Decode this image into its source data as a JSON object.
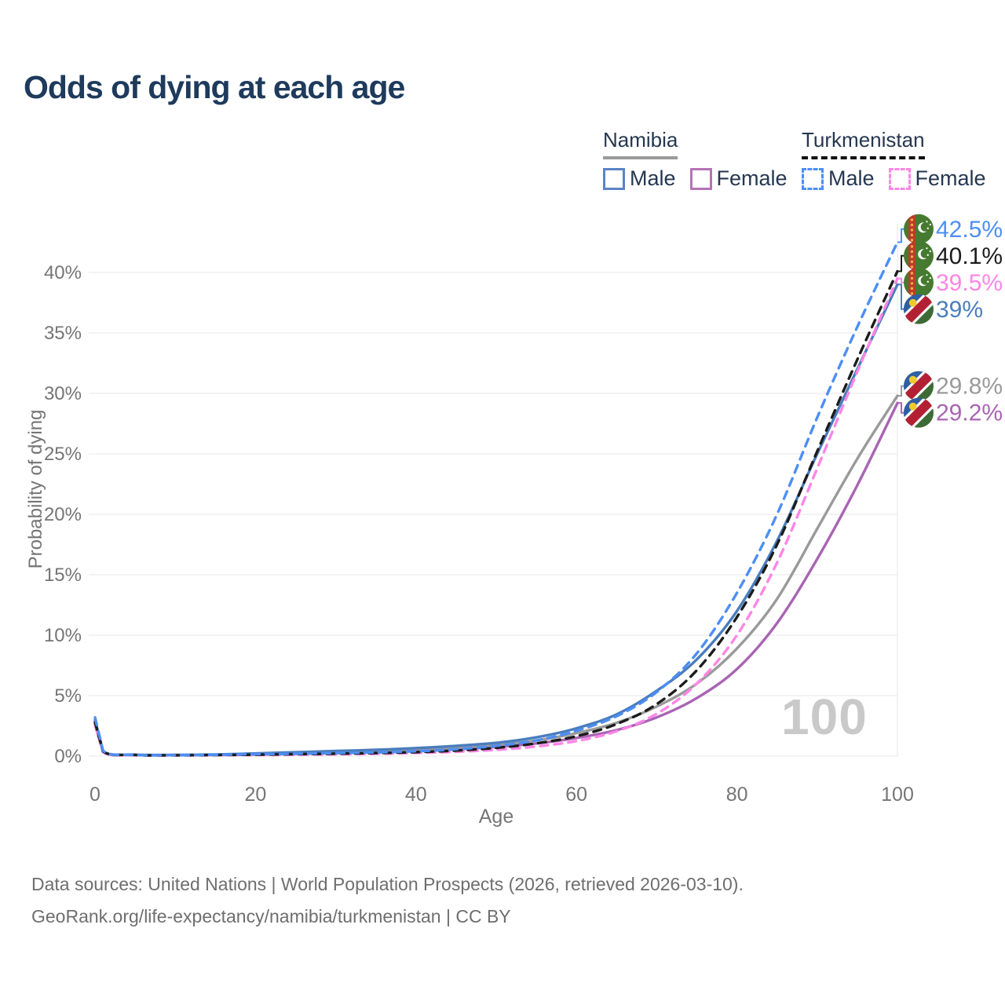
{
  "footer": {
    "line1": "Data sources: United Nations | World Population Prospects (2026, retrieved 2026-03-10).",
    "line2": "GeoRank.org/life-expectancy/namibia/turkmenistan | CC BY"
  },
  "legend": {
    "groups": [
      {
        "label": "Namibia",
        "line_style": "solid",
        "underline_color": "#9a9a9a",
        "items": [
          {
            "label": "Male",
            "color": "#5b84c4"
          },
          {
            "label": "Female",
            "color": "#b673b6"
          }
        ]
      },
      {
        "label": "Turkmenistan",
        "line_style": "dashed",
        "underline_color": "#111111",
        "items": [
          {
            "label": "Male",
            "color": "#4d8ef5"
          },
          {
            "label": "Female",
            "color": "#ff85e6"
          }
        ]
      }
    ]
  },
  "colors": {
    "title": "#1e3a5c",
    "axis_text": "#757575",
    "gridline": "#ececec",
    "watermark": "#c9c9c9",
    "footer_text": "#6e6e6e"
  },
  "chart_data": {
    "type": "line",
    "title": "Odds of dying at each age",
    "xlabel": "Age",
    "ylabel": "Probability of dying",
    "xlim": [
      0,
      100
    ],
    "ylim": [
      0,
      44
    ],
    "grid": "horizontal",
    "legend_position": "top-right",
    "watermark": "100",
    "x_ticks": [
      {
        "value": 0,
        "label": "0"
      },
      {
        "value": 20,
        "label": "20"
      },
      {
        "value": 40,
        "label": "40"
      },
      {
        "value": 60,
        "label": "60"
      },
      {
        "value": 80,
        "label": "80"
      },
      {
        "value": 100,
        "label": "100"
      }
    ],
    "y_ticks": [
      {
        "value": 0,
        "label": "0%"
      },
      {
        "value": 5,
        "label": "5%"
      },
      {
        "value": 10,
        "label": "10%"
      },
      {
        "value": 15,
        "label": "15%"
      },
      {
        "value": 20,
        "label": "20%"
      },
      {
        "value": 25,
        "label": "25%"
      },
      {
        "value": 30,
        "label": "30%"
      },
      {
        "value": 35,
        "label": "35%"
      },
      {
        "value": 40,
        "label": "40%"
      }
    ],
    "ages": [
      0,
      1,
      5,
      10,
      15,
      20,
      25,
      30,
      35,
      40,
      45,
      50,
      55,
      60,
      65,
      70,
      75,
      80,
      85,
      90,
      95,
      100
    ],
    "series": [
      {
        "name": "Turkmenistan Male",
        "country": "turkmenistan",
        "sex": "male",
        "line": "dashed",
        "color": "#4d8ef5",
        "end_label": "42.5%",
        "values": [
          3.2,
          0.45,
          0.1,
          0.08,
          0.11,
          0.16,
          0.2,
          0.25,
          0.31,
          0.4,
          0.57,
          0.85,
          1.3,
          2.1,
          3.3,
          5.3,
          8.5,
          13.5,
          20.0,
          28.0,
          35.5,
          42.5
        ]
      },
      {
        "name": "Turkmenistan",
        "country": "turkmenistan",
        "sex": "both",
        "line": "dashed",
        "color": "#1c1c1c",
        "end_label": "40.1%",
        "values": [
          2.8,
          0.4,
          0.09,
          0.07,
          0.09,
          0.12,
          0.16,
          0.2,
          0.25,
          0.33,
          0.46,
          0.68,
          1.05,
          1.65,
          2.65,
          4.3,
          7.1,
          11.5,
          17.5,
          25.2,
          32.8,
          40.1
        ]
      },
      {
        "name": "Turkmenistan Female",
        "country": "turkmenistan",
        "sex": "female",
        "line": "dashed",
        "color": "#ff85e6",
        "end_label": "39.5%",
        "values": [
          2.6,
          0.35,
          0.08,
          0.06,
          0.08,
          0.09,
          0.12,
          0.15,
          0.19,
          0.26,
          0.36,
          0.52,
          0.8,
          1.25,
          2.05,
          3.5,
          6.0,
          10.0,
          16.0,
          23.8,
          31.8,
          39.5
        ]
      },
      {
        "name": "Namibia Male",
        "country": "namibia",
        "sex": "male",
        "line": "solid",
        "color": "#4a7dbd",
        "end_label": "39%",
        "values": [
          3.0,
          0.4,
          0.12,
          0.1,
          0.13,
          0.22,
          0.32,
          0.42,
          0.52,
          0.66,
          0.85,
          1.1,
          1.55,
          2.3,
          3.45,
          5.4,
          8.0,
          12.0,
          17.8,
          25.0,
          32.0,
          39.0
        ]
      },
      {
        "name": "Namibia",
        "country": "namibia",
        "sex": "both",
        "line": "solid",
        "color": "#9a9a9a",
        "end_label": "29.8%",
        "values": [
          2.8,
          0.37,
          0.11,
          0.09,
          0.11,
          0.17,
          0.25,
          0.33,
          0.42,
          0.54,
          0.7,
          0.92,
          1.3,
          1.9,
          2.75,
          4.1,
          6.0,
          8.9,
          13.0,
          18.8,
          24.6,
          29.8
        ]
      },
      {
        "name": "Namibia Female",
        "country": "namibia",
        "sex": "female",
        "line": "solid",
        "color": "#a964b3",
        "end_label": "29.2%",
        "values": [
          2.6,
          0.34,
          0.1,
          0.08,
          0.09,
          0.13,
          0.19,
          0.25,
          0.32,
          0.43,
          0.56,
          0.76,
          1.05,
          1.5,
          2.15,
          3.2,
          4.8,
          7.2,
          11.0,
          16.3,
          22.4,
          29.2
        ]
      }
    ]
  }
}
